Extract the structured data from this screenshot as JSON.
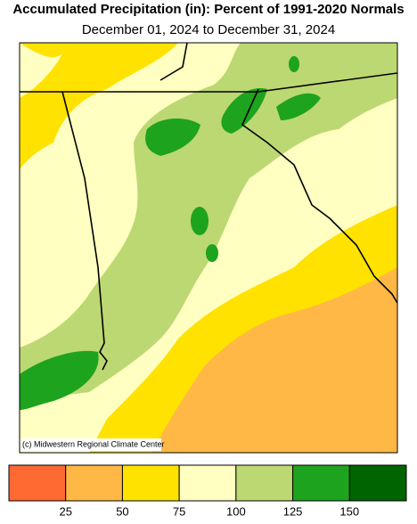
{
  "title": "Accumulated Precipitation (in): Percent of 1991-2020 Normals",
  "subtitle": "December 01, 2024 to December 31, 2024",
  "credit": "(c) Midwestern Regional Climate Center",
  "legend": {
    "colors": [
      "#ff6a32",
      "#ffb846",
      "#ffe200",
      "#ffffc2",
      "#bcd872",
      "#1ea31e",
      "#006400"
    ],
    "ticks": [
      25,
      50,
      75,
      100,
      125,
      150
    ]
  }
}
